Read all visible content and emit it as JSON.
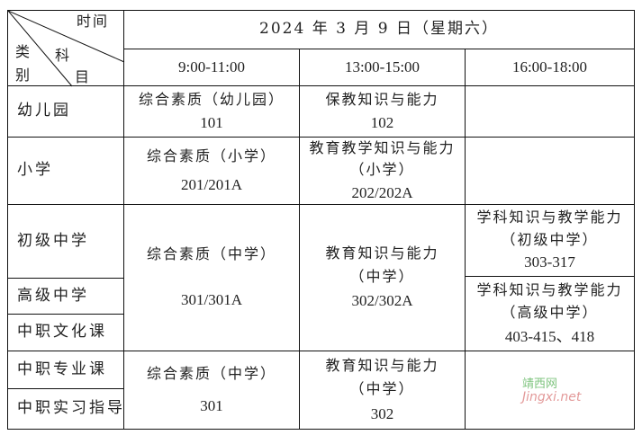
{
  "header": {
    "corner": {
      "time": "时间",
      "category": [
        "类",
        "别"
      ],
      "subject": [
        "科",
        "目"
      ]
    },
    "date": "2024 年 3 月 9 日（星期六）",
    "times": [
      "9:00-11:00",
      "13:00-15:00",
      "16:00-18:00"
    ]
  },
  "rows": [
    {
      "label": "幼儿园"
    },
    {
      "label": "小学"
    },
    {
      "label": "初级中学"
    },
    {
      "label": "高级中学"
    },
    {
      "label": "中职文化课"
    },
    {
      "label": "中职专业课"
    },
    {
      "label": "中职实习指导"
    }
  ],
  "cells": {
    "kg_morning": [
      "综合素质（幼儿园）",
      "101"
    ],
    "kg_afternoon": [
      "保教知识与能力",
      "102"
    ],
    "primary_morning": [
      "综合素质（小学）",
      "201/201A"
    ],
    "primary_afternoon": [
      "教育教学知识与能力",
      "（小学）",
      "202/202A"
    ],
    "secondary_morning": [
      "综合素质（中学）",
      "301/301A"
    ],
    "secondary_afternoon": [
      "教育知识与能力",
      "（中学）",
      "302/302A"
    ],
    "junior_evening": [
      "学科知识与教学能力",
      "（初级中学）",
      "303-317"
    ],
    "senior_evening": [
      "学科知识与教学能力",
      "（高级中学）",
      "403-415、418"
    ],
    "voc_morning": [
      "综合素质（中学）",
      "301"
    ],
    "voc_afternoon": [
      "教育知识与能力",
      "（中学）",
      "302"
    ]
  },
  "watermark": {
    "cn": "靖西网",
    "url": "Jingxi.net"
  }
}
